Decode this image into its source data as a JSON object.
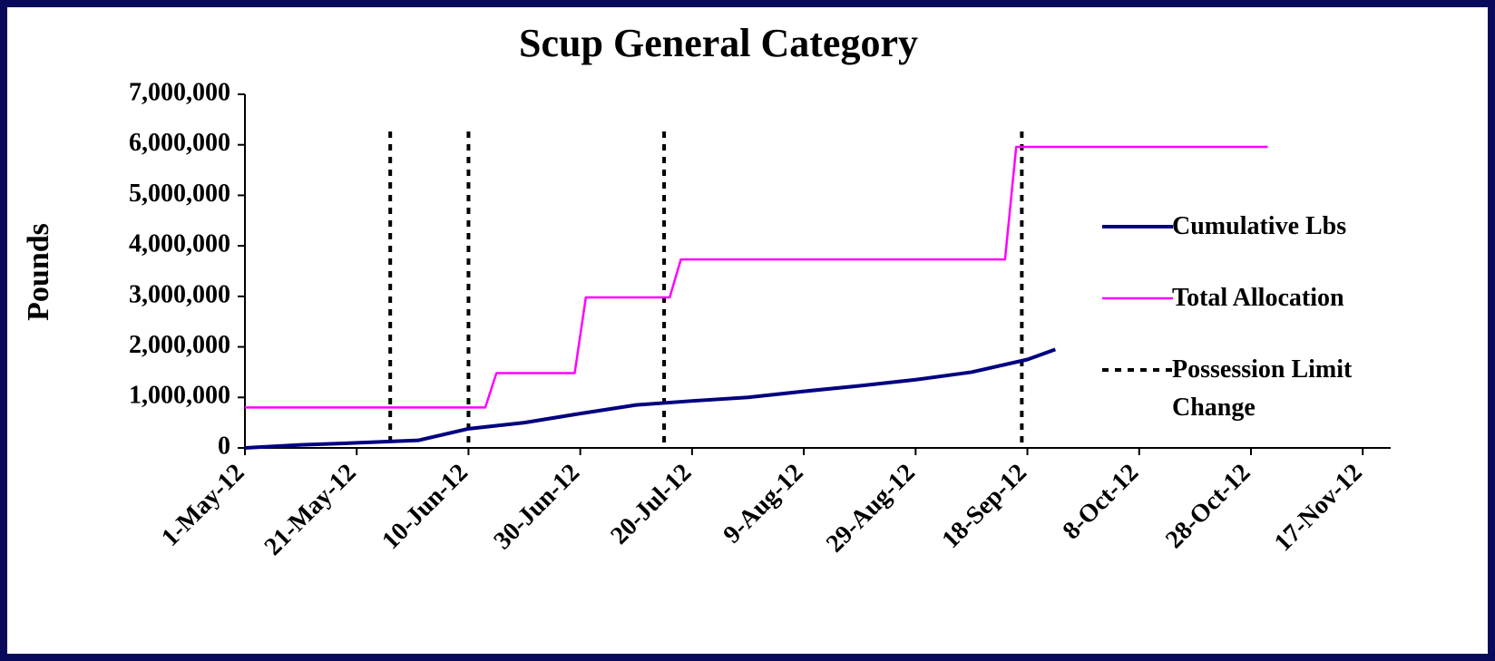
{
  "chart_data": {
    "type": "line",
    "title": "Scup General Category",
    "y_label": "Pounds",
    "xlim": [
      "2012-05-01",
      "2012-11-22"
    ],
    "xticks": [
      {
        "value": "2012-05-01",
        "label": "1-May-12"
      },
      {
        "value": "2012-05-21",
        "label": "21-May-12"
      },
      {
        "value": "2012-06-10",
        "label": "10-Jun-12"
      },
      {
        "value": "2012-06-30",
        "label": "30-Jun-12"
      },
      {
        "value": "2012-07-20",
        "label": "20-Jul-12"
      },
      {
        "value": "2012-08-09",
        "label": "9-Aug-12"
      },
      {
        "value": "2012-08-29",
        "label": "29-Aug-12"
      },
      {
        "value": "2012-09-18",
        "label": "18-Sep-12"
      },
      {
        "value": "2012-10-08",
        "label": "8-Oct-12"
      },
      {
        "value": "2012-10-28",
        "label": "28-Oct-12"
      },
      {
        "value": "2012-11-17",
        "label": "17-Nov-12"
      }
    ],
    "ylim": [
      0,
      7000000
    ],
    "yticks": [
      0,
      {
        "value": 1000000,
        "label": "1,000,000"
      },
      {
        "value": 2000000,
        "label": "2,000,000"
      },
      {
        "value": 3000000,
        "label": "3,000,000"
      },
      {
        "value": 4000000,
        "label": "4,000,000"
      },
      {
        "value": 5000000,
        "label": "5,000,000"
      },
      {
        "value": 6000000,
        "label": "6,000,000"
      },
      {
        "value": 7000000,
        "label": "7,000,000"
      }
    ],
    "grid": false,
    "legend": "right",
    "series": [
      {
        "name": "Cumulative Lbs",
        "color": "#000080",
        "x": [
          "2012-05-01",
          "2012-05-11",
          "2012-05-21",
          "2012-06-01",
          "2012-06-10",
          "2012-06-20",
          "2012-06-30",
          "2012-07-10",
          "2012-07-20",
          "2012-07-30",
          "2012-08-09",
          "2012-08-19",
          "2012-08-29",
          "2012-09-08",
          "2012-09-18",
          "2012-09-23"
        ],
        "values": [
          0,
          60000,
          100000,
          150000,
          380000,
          500000,
          680000,
          850000,
          930000,
          1000000,
          1120000,
          1230000,
          1350000,
          1500000,
          1750000,
          1950000
        ]
      },
      {
        "name": "Total Allocation",
        "color": "#ff00ff",
        "x": [
          "2012-05-01",
          "2012-06-13",
          "2012-06-15",
          "2012-06-29",
          "2012-07-01",
          "2012-07-16",
          "2012-07-18",
          "2012-09-14",
          "2012-09-16",
          "2012-10-31"
        ],
        "values": [
          800000,
          800000,
          1480000,
          1480000,
          2980000,
          2980000,
          3730000,
          3730000,
          5960000,
          5960000
        ]
      }
    ],
    "markers": {
      "name": "Possession Limit Change",
      "color": "#000000",
      "x": [
        "2012-05-27",
        "2012-06-10",
        "2012-07-15",
        "2012-09-17"
      ]
    }
  }
}
